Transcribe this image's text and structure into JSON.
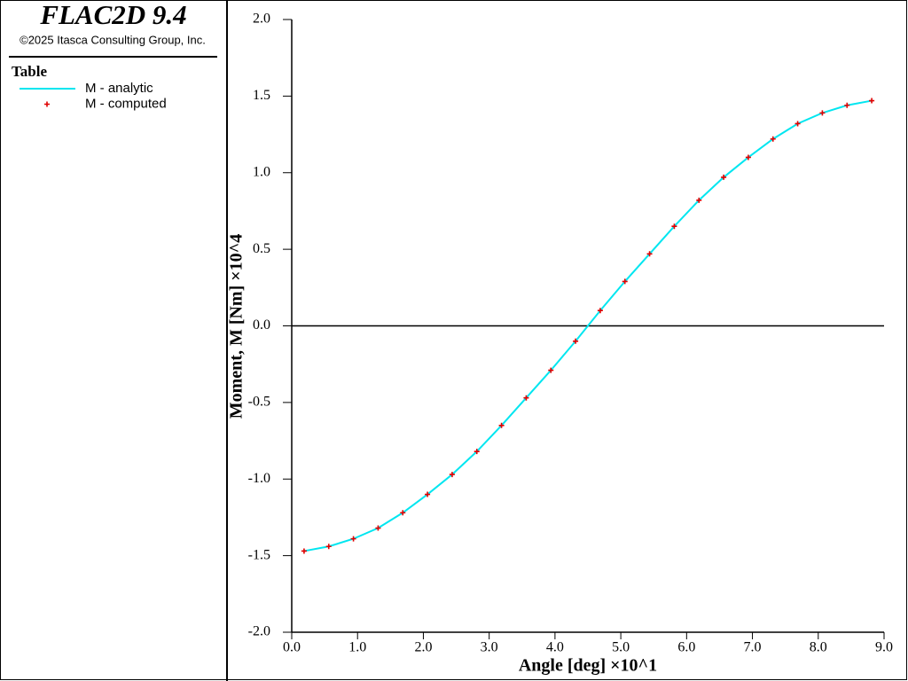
{
  "header": {
    "title": "FLAC2D 9.4",
    "copyright": "©2025 Itasca Consulting Group, Inc.",
    "legend_title": "Table"
  },
  "chart_data": {
    "type": "line",
    "xlabel": "Angle [deg] ×10^1",
    "ylabel": "Moment, M [Nm] ×10^4",
    "x": [
      0.1875,
      0.5625,
      0.9375,
      1.3125,
      1.6875,
      2.0625,
      2.4375,
      2.8125,
      3.1875,
      3.5625,
      3.9375,
      4.3125,
      4.6875,
      5.0625,
      5.4375,
      5.8125,
      6.1875,
      6.5625,
      6.9375,
      7.3125,
      7.6875,
      8.0625,
      8.4375,
      8.8125
    ],
    "series": [
      {
        "name": "M - analytic",
        "color": "#00e6f0",
        "marker": "line",
        "values": [
          -1.47,
          -1.44,
          -1.39,
          -1.32,
          -1.22,
          -1.1,
          -0.97,
          -0.82,
          -0.65,
          -0.47,
          -0.29,
          -0.1,
          0.1,
          0.29,
          0.47,
          0.65,
          0.82,
          0.97,
          1.1,
          1.22,
          1.32,
          1.39,
          1.44,
          1.47
        ]
      },
      {
        "name": "M - computed",
        "color": "#e00000",
        "marker": "plus",
        "values": [
          -1.47,
          -1.44,
          -1.39,
          -1.32,
          -1.22,
          -1.1,
          -0.97,
          -0.82,
          -0.65,
          -0.47,
          -0.29,
          -0.1,
          0.1,
          0.29,
          0.47,
          0.65,
          0.82,
          0.97,
          1.1,
          1.22,
          1.32,
          1.39,
          1.44,
          1.47
        ]
      }
    ],
    "xlim": [
      0,
      9
    ],
    "xticks": [
      {
        "value": 0,
        "label": "0.0"
      },
      {
        "value": 1,
        "label": "1.0"
      },
      {
        "value": 2,
        "label": "2.0"
      },
      {
        "value": 3,
        "label": "3.0"
      },
      {
        "value": 4,
        "label": "4.0"
      },
      {
        "value": 5,
        "label": "5.0"
      },
      {
        "value": 6,
        "label": "6.0"
      },
      {
        "value": 7,
        "label": "7.0"
      },
      {
        "value": 8,
        "label": "8.0"
      },
      {
        "value": 9,
        "label": "9.0"
      }
    ],
    "ylim": [
      -2,
      2
    ],
    "yticks": [
      {
        "value": -2,
        "label": "-2.0"
      },
      {
        "value": -1.5,
        "label": "-1.5"
      },
      {
        "value": -1,
        "label": "-1.0"
      },
      {
        "value": -0.5,
        "label": "-0.5"
      },
      {
        "value": 0,
        "label": "0.0"
      },
      {
        "value": 0.5,
        "label": "0.5"
      },
      {
        "value": 1,
        "label": "1.0"
      },
      {
        "value": 1.5,
        "label": "1.5"
      },
      {
        "value": 2,
        "label": "2.0"
      }
    ]
  }
}
